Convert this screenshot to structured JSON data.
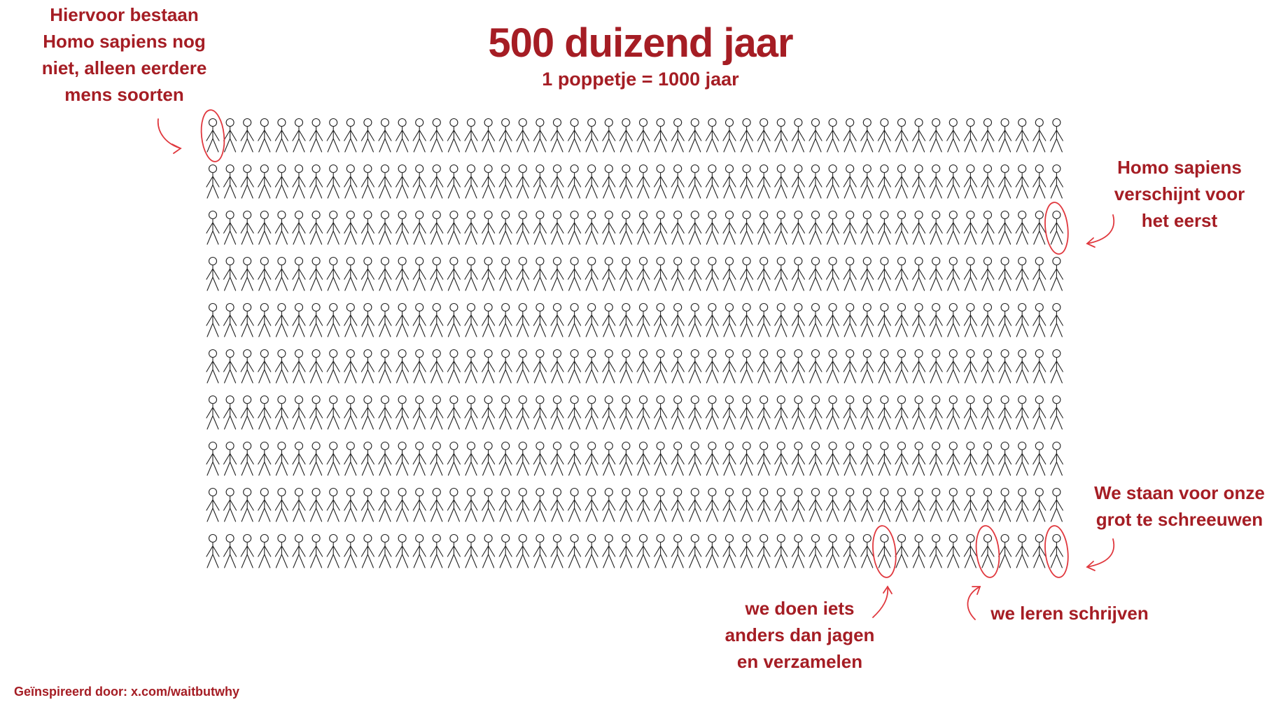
{
  "header": {
    "title": "500 duizend jaar",
    "subtitle": "1 poppetje = 1000 jaar"
  },
  "chart_data": {
    "type": "pictogram",
    "rows": 10,
    "columns": 50,
    "total_figures": 500,
    "unit_value": 1000,
    "unit_label": "jaar",
    "highlighted": [
      {
        "row": 1,
        "column": 1,
        "label": "Hiervoor bestaan Homo sapiens nog niet, alleen eerdere mens soorten"
      },
      {
        "row": 3,
        "column": 50,
        "label": "Homo sapiens verschijnt voor het eerst"
      },
      {
        "row": 10,
        "column": 40,
        "label": "we doen iets anders dan jagen en verzamelen"
      },
      {
        "row": 10,
        "column": 46,
        "label": "we leren schrijven"
      },
      {
        "row": 10,
        "column": 50,
        "label": "We staan voor onze grot te schreeuwen"
      }
    ]
  },
  "annotations": {
    "before_sapiens": "Hiervoor bestaan\nHomo sapiens nog\nniet, alleen eerdere\nmens soorten",
    "sapiens_appears": "Homo sapiens\nverschijnt voor\nhet eerst",
    "not_hunting": "we doen iets\nanders dan jagen\nen verzamelen",
    "writing": "we leren schrijven",
    "cave": "We staan voor onze\ngrot te schreeuwen"
  },
  "footer": {
    "credit": "Geïnspireerd door: x.com/waitbutwhy"
  },
  "colors": {
    "accent": "#a51d24",
    "figure_stroke": "#222222",
    "highlight": "#e0383e"
  }
}
